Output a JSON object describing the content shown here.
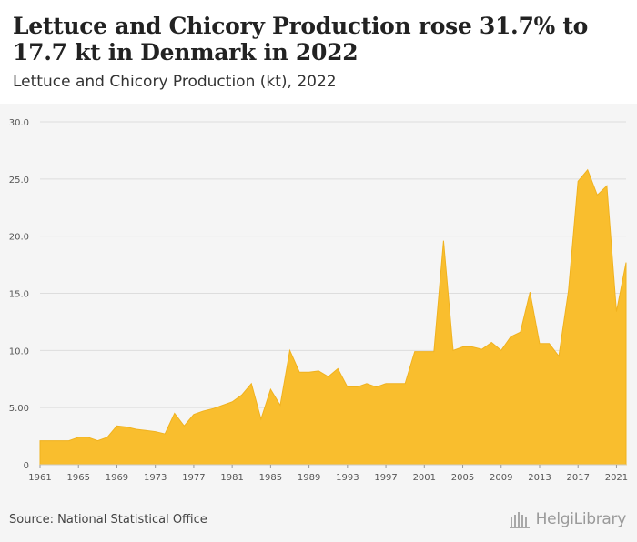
{
  "header": {
    "title": "Lettuce and Chicory Production rose 31.7% to 17.7 kt in Denmark in 2022",
    "subtitle": "Lettuce and Chicory Production (kt), 2022"
  },
  "footer": {
    "source": "Source: National Statistical Office",
    "logo_text": "HelgiLibrary"
  },
  "colors": {
    "area_fill": "#f9be2e",
    "area_stroke": "#f0b21f",
    "grid": "#dddddd",
    "background": "#f5f5f5"
  },
  "chart_data": {
    "type": "area",
    "title": "Lettuce and Chicory Production rose 31.7% to 17.7 kt in Denmark in 2022",
    "subtitle": "Lettuce and Chicory Production (kt), 2022",
    "xlabel": "",
    "ylabel": "",
    "ylim": [
      0,
      30
    ],
    "xlim": [
      1961,
      2022
    ],
    "y_ticks": [
      "0",
      "5.00",
      "10.0",
      "15.0",
      "20.0",
      "25.0",
      "30.0"
    ],
    "x_ticks": [
      "1961",
      "1965",
      "1969",
      "1973",
      "1977",
      "1981",
      "1985",
      "1989",
      "1993",
      "1997",
      "2001",
      "2005",
      "2009",
      "2013",
      "2017",
      "2021"
    ],
    "grid": true,
    "legend": "none",
    "x": [
      1961,
      1962,
      1963,
      1964,
      1965,
      1966,
      1967,
      1968,
      1969,
      1970,
      1971,
      1972,
      1973,
      1974,
      1975,
      1976,
      1977,
      1978,
      1979,
      1980,
      1981,
      1982,
      1983,
      1984,
      1985,
      1986,
      1987,
      1988,
      1989,
      1990,
      1991,
      1992,
      1993,
      1994,
      1995,
      1996,
      1997,
      1998,
      1999,
      2000,
      2001,
      2002,
      2003,
      2004,
      2005,
      2006,
      2007,
      2008,
      2009,
      2010,
      2011,
      2012,
      2013,
      2014,
      2015,
      2016,
      2017,
      2018,
      2019,
      2020,
      2021,
      2022
    ],
    "values": [
      2.1,
      2.1,
      2.1,
      2.1,
      2.4,
      2.4,
      2.1,
      2.4,
      3.4,
      3.3,
      3.1,
      3.0,
      2.9,
      2.7,
      4.5,
      3.4,
      4.4,
      4.7,
      4.9,
      5.2,
      5.5,
      6.1,
      7.1,
      4.0,
      6.6,
      5.2,
      10.0,
      8.1,
      8.1,
      8.2,
      7.7,
      8.4,
      6.8,
      6.8,
      7.1,
      6.8,
      7.1,
      7.1,
      7.1,
      9.9,
      9.9,
      9.9,
      19.6,
      10.0,
      10.3,
      10.3,
      10.1,
      10.7,
      10.0,
      11.2,
      11.6,
      15.1,
      10.6,
      10.6,
      9.5,
      15.2,
      24.8,
      25.8,
      23.6,
      24.4,
      13.4,
      17.7
    ]
  }
}
